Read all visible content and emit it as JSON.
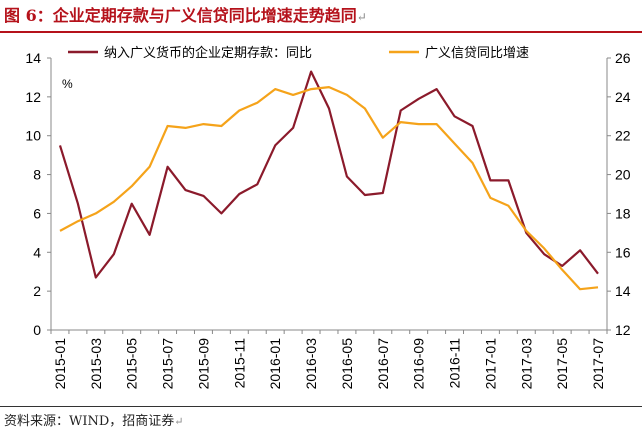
{
  "figure": {
    "title": "图 6：企业定期存款与广义信贷同比增速走势趋同",
    "source": "资料来源：WIND，招商证券",
    "return_mark": "↵"
  },
  "chart_data": {
    "type": "line",
    "categories": [
      "2015-01",
      "2015-02",
      "2015-03",
      "2015-04",
      "2015-05",
      "2015-06",
      "2015-07",
      "2015-08",
      "2015-09",
      "2015-10",
      "2015-11",
      "2015-12",
      "2016-01",
      "2016-02",
      "2016-03",
      "2016-04",
      "2016-05",
      "2016-06",
      "2016-07",
      "2016-08",
      "2016-09",
      "2016-10",
      "2016-11",
      "2016-12",
      "2017-01",
      "2017-02",
      "2017-03",
      "2017-04",
      "2017-05",
      "2017-06",
      "2017-07"
    ],
    "xticks": [
      "2015-01",
      "2015-03",
      "2015-05",
      "2015-07",
      "2015-09",
      "2015-11",
      "2016-01",
      "2016-03",
      "2016-05",
      "2016-07",
      "2016-09",
      "2016-11",
      "2017-01",
      "2017-03",
      "2017-05",
      "2017-07"
    ],
    "left_axis": {
      "ylim": [
        0,
        14
      ],
      "ticks": [
        0,
        2,
        4,
        6,
        8,
        10,
        12,
        14
      ],
      "unit": "%"
    },
    "right_axis": {
      "ylim": [
        12,
        26
      ],
      "ticks": [
        12,
        14,
        16,
        18,
        20,
        22,
        24,
        26
      ]
    },
    "series": [
      {
        "name": "纳入广义货币的企业定期存款：同比",
        "axis": "left",
        "color": "#8b1a2b",
        "values": [
          9.5,
          6.5,
          2.7,
          3.9,
          6.5,
          4.9,
          8.4,
          7.2,
          6.9,
          6.0,
          7.0,
          7.5,
          9.5,
          10.4,
          13.3,
          11.4,
          7.9,
          6.95,
          7.05,
          11.3,
          11.9,
          12.4,
          11.0,
          10.5,
          7.7,
          7.7,
          5.0,
          3.9,
          3.3,
          4.1,
          2.9
        ]
      },
      {
        "name": "广义信贷同比增速",
        "axis": "right",
        "color": "#f5a31a",
        "values": [
          17.1,
          17.6,
          18.0,
          18.6,
          19.4,
          20.4,
          22.5,
          22.4,
          22.6,
          22.5,
          23.3,
          23.7,
          24.4,
          24.1,
          24.4,
          24.5,
          24.1,
          23.4,
          21.9,
          22.7,
          22.6,
          22.6,
          21.6,
          20.6,
          18.8,
          18.4,
          17.1,
          16.2,
          15.1,
          14.1,
          14.2
        ]
      }
    ]
  }
}
